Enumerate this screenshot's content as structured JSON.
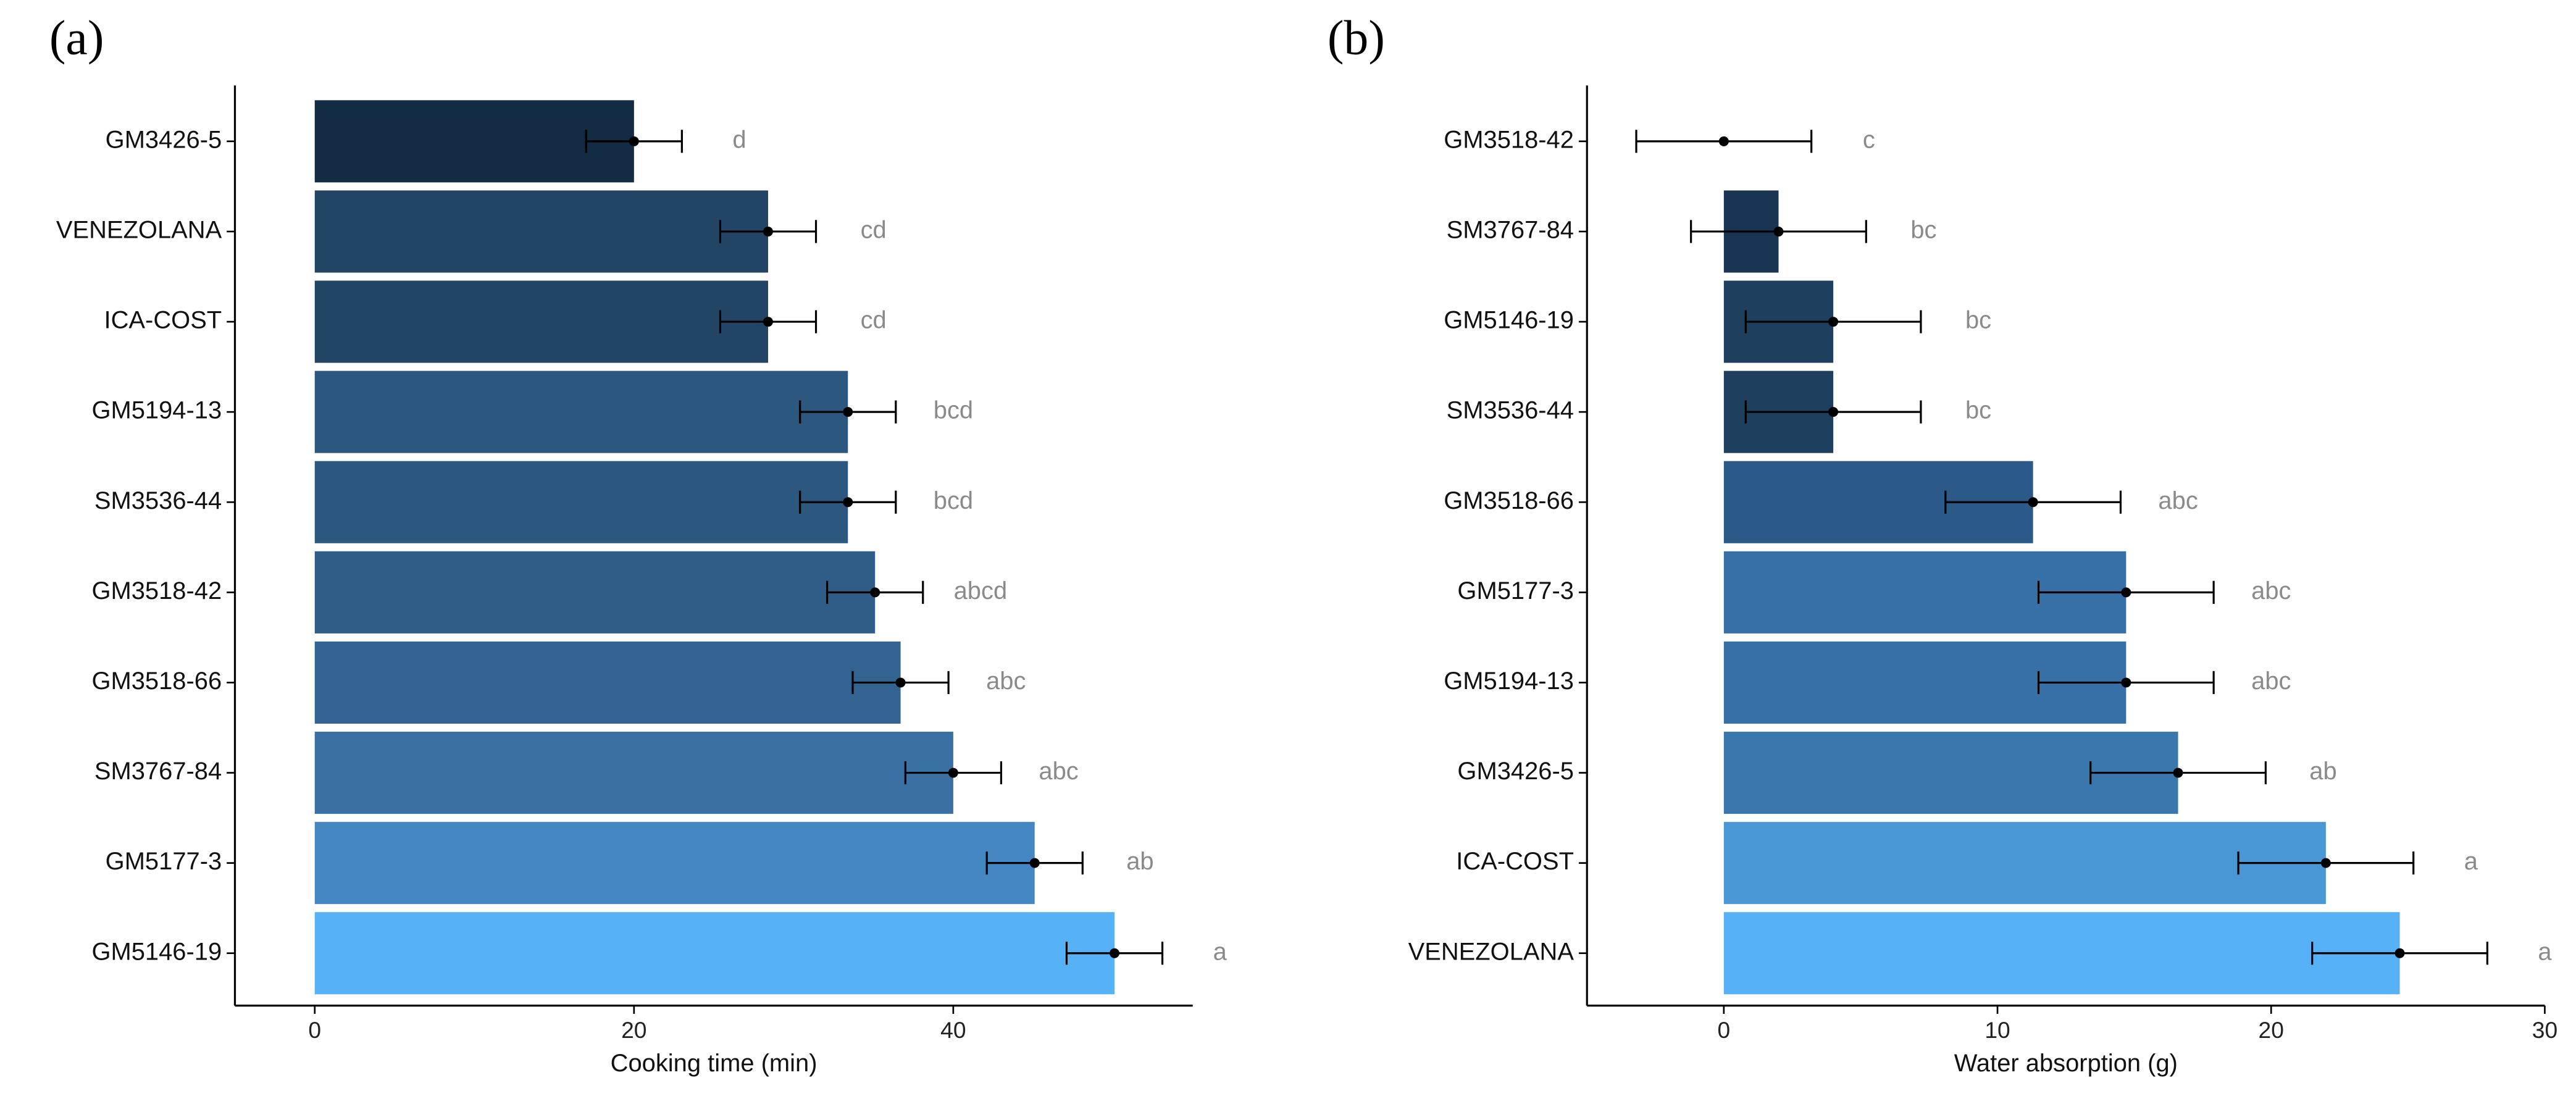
{
  "chart_data": [
    {
      "type": "bar",
      "orientation": "horizontal",
      "panel_label": "(a)",
      "xlabel": "Cooking time (min)",
      "categories": [
        "GM3426-5",
        "VENEZOLANA",
        "ICA-COST",
        "GM5194-13",
        "SM3536-44",
        "GM3518-42",
        "GM3518-66",
        "SM3767-84",
        "GM5177-3",
        "GM5146-19"
      ],
      "values": [
        20,
        28.4,
        28.4,
        33.4,
        33.4,
        35.1,
        36.7,
        40,
        45.1,
        50.1
      ],
      "errors": [
        3,
        3,
        3,
        3,
        3,
        3,
        3,
        3,
        3,
        3
      ],
      "letters": [
        "d",
        "cd",
        "cd",
        "bcd",
        "bcd",
        "abcd",
        "abc",
        "abc",
        "ab",
        "a"
      ],
      "colors": [
        "#132b43",
        "#224566",
        "#224566",
        "#2c5880",
        "#2c5880",
        "#2f5d87",
        "#336391",
        "#3a70a3",
        "#4587c2",
        "#56b1f7"
      ],
      "xlim": [
        -5,
        55
      ],
      "xticks": [
        0,
        20,
        40
      ]
    },
    {
      "type": "bar",
      "orientation": "horizontal",
      "panel_label": "(b)",
      "xlabel": "Water absorption (g)",
      "categories": [
        "GM3518-42",
        "SM3767-84",
        "GM5146-19",
        "SM3536-44",
        "GM3518-66",
        "GM5177-3",
        "GM5194-13",
        "GM3426-5",
        "ICA-COST",
        "VENEZOLANA"
      ],
      "values": [
        0,
        2.0,
        4.0,
        4.0,
        11.3,
        14.7,
        14.7,
        16.6,
        22.0,
        24.7
      ],
      "errors": [
        3.2,
        3.2,
        3.2,
        3.2,
        3.2,
        3.2,
        3.2,
        3.2,
        3.2,
        3.2
      ],
      "letters": [
        "c",
        "bc",
        "bc",
        "bc",
        "abc",
        "abc",
        "abc",
        "ab",
        "a",
        "a"
      ],
      "colors": [
        "#132b43",
        "#1a3553",
        "#1f3f5f",
        "#1f3f5f",
        "#2c5a88",
        "#3670a6",
        "#3670a6",
        "#3a77ad",
        "#4a97d6",
        "#56b1f7"
      ],
      "xlim": [
        -5,
        30
      ],
      "xticks": [
        0,
        10,
        20,
        30
      ]
    }
  ]
}
